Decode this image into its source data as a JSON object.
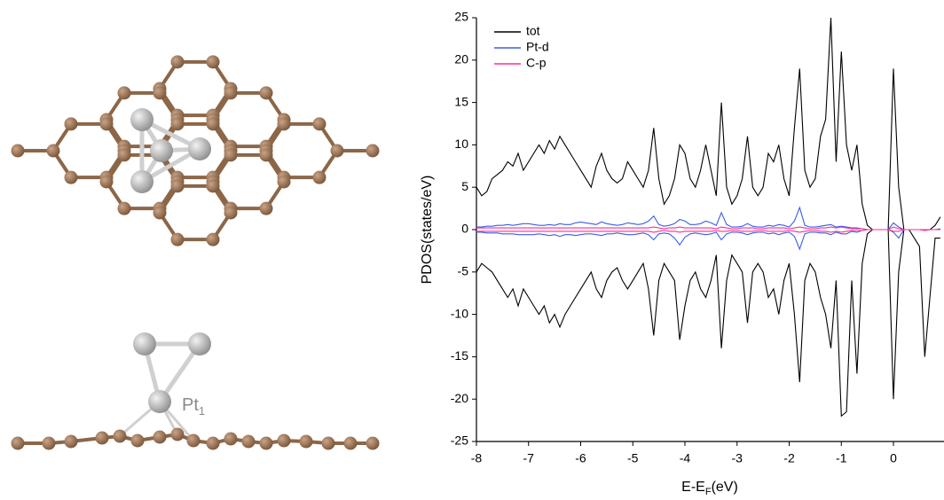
{
  "structure": {
    "label": "Pt",
    "label_sub": "1"
  },
  "chart_data": {
    "type": "line",
    "y_label": "PDOS(states/eV)",
    "x_label": "E-E",
    "x_label_sub": "F",
    "x_label_unit": "(eV)",
    "xlim": [
      -8,
      0.97
    ],
    "xticks": [
      -8,
      -7,
      -6,
      -5,
      -4,
      -3,
      -2,
      -1,
      0
    ],
    "ylim": [
      -25,
      25
    ],
    "yticks": [
      -25,
      -20,
      -15,
      -10,
      -5,
      0,
      5,
      10,
      15,
      20,
      25
    ],
    "legend": "upper-left",
    "x": [
      -8,
      -7.9,
      -7.8,
      -7.7,
      -7.6,
      -7.5,
      -7.4,
      -7.3,
      -7.2,
      -7.1,
      -7,
      -6.9,
      -6.8,
      -6.7,
      -6.6,
      -6.5,
      -6.4,
      -6.3,
      -6.2,
      -6.1,
      -6,
      -5.9,
      -5.8,
      -5.7,
      -5.6,
      -5.5,
      -5.4,
      -5.3,
      -5.2,
      -5.1,
      -5,
      -4.9,
      -4.8,
      -4.7,
      -4.6,
      -4.5,
      -4.4,
      -4.3,
      -4.2,
      -4.1,
      -4,
      -3.9,
      -3.8,
      -3.7,
      -3.6,
      -3.5,
      -3.4,
      -3.3,
      -3.2,
      -3.1,
      -3,
      -2.9,
      -2.8,
      -2.7,
      -2.6,
      -2.5,
      -2.4,
      -2.3,
      -2.2,
      -2.1,
      -2,
      -1.9,
      -1.8,
      -1.7,
      -1.6,
      -1.5,
      -1.4,
      -1.3,
      -1.2,
      -1.1,
      -1,
      -0.9,
      -0.8,
      -0.7,
      -0.6,
      -0.5,
      -0.4,
      -0.3,
      -0.2,
      -0.1,
      0,
      0.1,
      0.2,
      0.3,
      0.4,
      0.5,
      0.6,
      0.7,
      0.8,
      0.9
    ],
    "series": [
      {
        "name": "tot",
        "color": "#000000",
        "up": [
          5,
          4,
          4.5,
          6,
          6.5,
          7,
          8,
          7.5,
          9,
          7,
          8,
          9,
          10,
          9,
          10.5,
          9.5,
          11,
          10,
          9,
          8,
          7,
          6,
          5,
          7.5,
          9,
          7,
          6,
          5.5,
          6,
          8,
          7,
          6,
          5,
          7,
          12,
          6,
          3,
          4,
          6,
          10,
          9,
          6,
          5,
          7,
          10,
          7,
          4,
          15,
          5,
          3,
          4,
          6,
          11,
          5,
          4,
          5,
          9,
          8,
          10,
          6,
          4,
          12,
          19,
          7,
          5,
          6,
          11,
          13,
          25,
          8,
          21,
          10,
          7,
          10,
          3,
          0.5,
          0,
          0,
          0,
          0,
          19,
          5,
          0,
          0,
          0,
          0,
          0,
          0,
          0.5,
          1.5
        ],
        "down": [
          -5,
          -4,
          -4.5,
          -5,
          -6,
          -7,
          -8,
          -7,
          -9,
          -7,
          -8,
          -9,
          -10,
          -9,
          -11,
          -10,
          -11.5,
          -10,
          -9,
          -8,
          -7,
          -6,
          -5,
          -7,
          -8,
          -6,
          -5,
          -4.5,
          -6,
          -7,
          -6,
          -5,
          -4,
          -7,
          -12.5,
          -6,
          -4,
          -5,
          -6,
          -13,
          -9,
          -6,
          -5,
          -7,
          -8,
          -6,
          -3,
          -14,
          -6,
          -3,
          -4,
          -5,
          -11,
          -5,
          -4,
          -5,
          -8,
          -7,
          -10,
          -6,
          -4,
          -10,
          -18,
          -6,
          -4,
          -5,
          -8,
          -10,
          -14,
          -6,
          -22,
          -21.5,
          -6,
          -17,
          -4,
          -0.5,
          0,
          0,
          0,
          0,
          -20,
          -5,
          0,
          0,
          -1,
          -2,
          -15,
          -8,
          -1,
          -1
        ]
      },
      {
        "name": "Pt-d",
        "color": "#3a5ee8",
        "up": [
          0.3,
          0.3,
          0.4,
          0.4,
          0.5,
          0.5,
          0.6,
          0.5,
          0.6,
          0.7,
          0.7,
          0.6,
          0.5,
          0.5,
          0.6,
          0.5,
          0.7,
          0.6,
          0.6,
          0.8,
          0.9,
          0.8,
          0.7,
          0.6,
          0.9,
          0.7,
          0.6,
          0.5,
          0.6,
          0.8,
          0.7,
          0.6,
          0.7,
          1,
          1.6,
          0.6,
          0.4,
          0.5,
          0.7,
          1.2,
          1,
          0.6,
          0.6,
          0.7,
          1,
          0.8,
          0.5,
          2,
          0.6,
          0.3,
          0.3,
          0.4,
          0.7,
          0.4,
          0.3,
          0.3,
          0.5,
          0.4,
          0.6,
          0.5,
          0.3,
          1,
          2.6,
          0.5,
          0.3,
          0.3,
          0.4,
          0.5,
          0.6,
          0.3,
          0.4,
          0.3,
          0.2,
          0.2,
          0.1,
          0,
          0,
          0,
          0,
          0,
          0.8,
          0.3,
          0,
          0,
          0,
          0,
          0,
          0,
          0,
          0.1
        ],
        "down": [
          -0.3,
          -0.3,
          -0.4,
          -0.4,
          -0.4,
          -0.5,
          -0.5,
          -0.5,
          -0.6,
          -0.6,
          -0.6,
          -0.6,
          -0.5,
          -0.6,
          -0.7,
          -0.6,
          -0.8,
          -0.6,
          -0.6,
          -0.7,
          -0.6,
          -0.5,
          -0.5,
          -0.6,
          -0.7,
          -0.5,
          -0.5,
          -0.4,
          -0.5,
          -0.6,
          -0.6,
          -0.5,
          -0.4,
          -0.6,
          -1.2,
          -0.5,
          -0.4,
          -0.5,
          -1,
          -1.8,
          -0.9,
          -0.5,
          -0.4,
          -0.5,
          -0.6,
          -0.5,
          -0.3,
          -1.2,
          -0.5,
          -0.3,
          -0.3,
          -0.4,
          -0.6,
          -0.4,
          -0.3,
          -0.3,
          -0.5,
          -0.4,
          -0.6,
          -0.4,
          -0.3,
          -0.8,
          -2.3,
          -0.5,
          -0.3,
          -0.3,
          -0.4,
          -0.4,
          -0.6,
          -0.3,
          -0.5,
          -0.5,
          -0.2,
          -0.3,
          -0.1,
          0,
          0,
          0,
          0,
          0,
          -0.3,
          -1,
          0,
          0,
          0,
          0,
          -0.1,
          0,
          0,
          0
        ]
      },
      {
        "name": "C-p",
        "color": "#ff2f8f",
        "up": [
          0.2,
          0.2,
          0.2,
          0.2,
          0.2,
          0.2,
          0.2,
          0.2,
          0.2,
          0.2,
          0.2,
          0.2,
          0.2,
          0.2,
          0.2,
          0.2,
          0.2,
          0.2,
          0.2,
          0.2,
          0.2,
          0.2,
          0.2,
          0.2,
          0.2,
          0.2,
          0.2,
          0.2,
          0.2,
          0.2,
          0.2,
          0.2,
          0.2,
          0.2,
          0.3,
          0.2,
          0.1,
          0.2,
          0.2,
          0.3,
          0.2,
          0.2,
          0.2,
          0.2,
          0.2,
          0.2,
          0.1,
          0.3,
          0.2,
          0.1,
          0.1,
          0.2,
          0.2,
          0.2,
          0.1,
          0.1,
          0.2,
          0.2,
          0.2,
          0.2,
          0.1,
          0.2,
          0.3,
          0.2,
          0.1,
          0.1,
          0.2,
          0.2,
          0.3,
          0.2,
          0.3,
          0.2,
          0.1,
          0.1,
          0.1,
          0,
          0,
          0,
          0,
          0,
          0.3,
          0.1,
          0,
          0,
          0,
          0,
          0,
          0,
          0,
          0
        ],
        "down": [
          -0.2,
          -0.2,
          -0.2,
          -0.2,
          -0.2,
          -0.2,
          -0.2,
          -0.2,
          -0.2,
          -0.2,
          -0.2,
          -0.2,
          -0.2,
          -0.2,
          -0.2,
          -0.2,
          -0.2,
          -0.2,
          -0.2,
          -0.2,
          -0.2,
          -0.2,
          -0.2,
          -0.2,
          -0.2,
          -0.2,
          -0.2,
          -0.2,
          -0.2,
          -0.2,
          -0.2,
          -0.2,
          -0.2,
          -0.2,
          -0.3,
          -0.2,
          -0.1,
          -0.2,
          -0.2,
          -0.3,
          -0.2,
          -0.2,
          -0.2,
          -0.2,
          -0.2,
          -0.2,
          -0.1,
          -0.2,
          -0.2,
          -0.1,
          -0.1,
          -0.2,
          -0.2,
          -0.2,
          -0.1,
          -0.1,
          -0.2,
          -0.2,
          -0.2,
          -0.2,
          -0.1,
          -0.2,
          -0.3,
          -0.2,
          -0.1,
          -0.1,
          -0.2,
          -0.2,
          -0.3,
          -0.2,
          -0.3,
          -0.2,
          -0.1,
          -0.1,
          -0.1,
          0,
          0,
          0,
          0,
          0,
          -0.2,
          -0.2,
          0,
          0,
          0,
          0,
          -0.1,
          0,
          0,
          0
        ]
      }
    ]
  }
}
